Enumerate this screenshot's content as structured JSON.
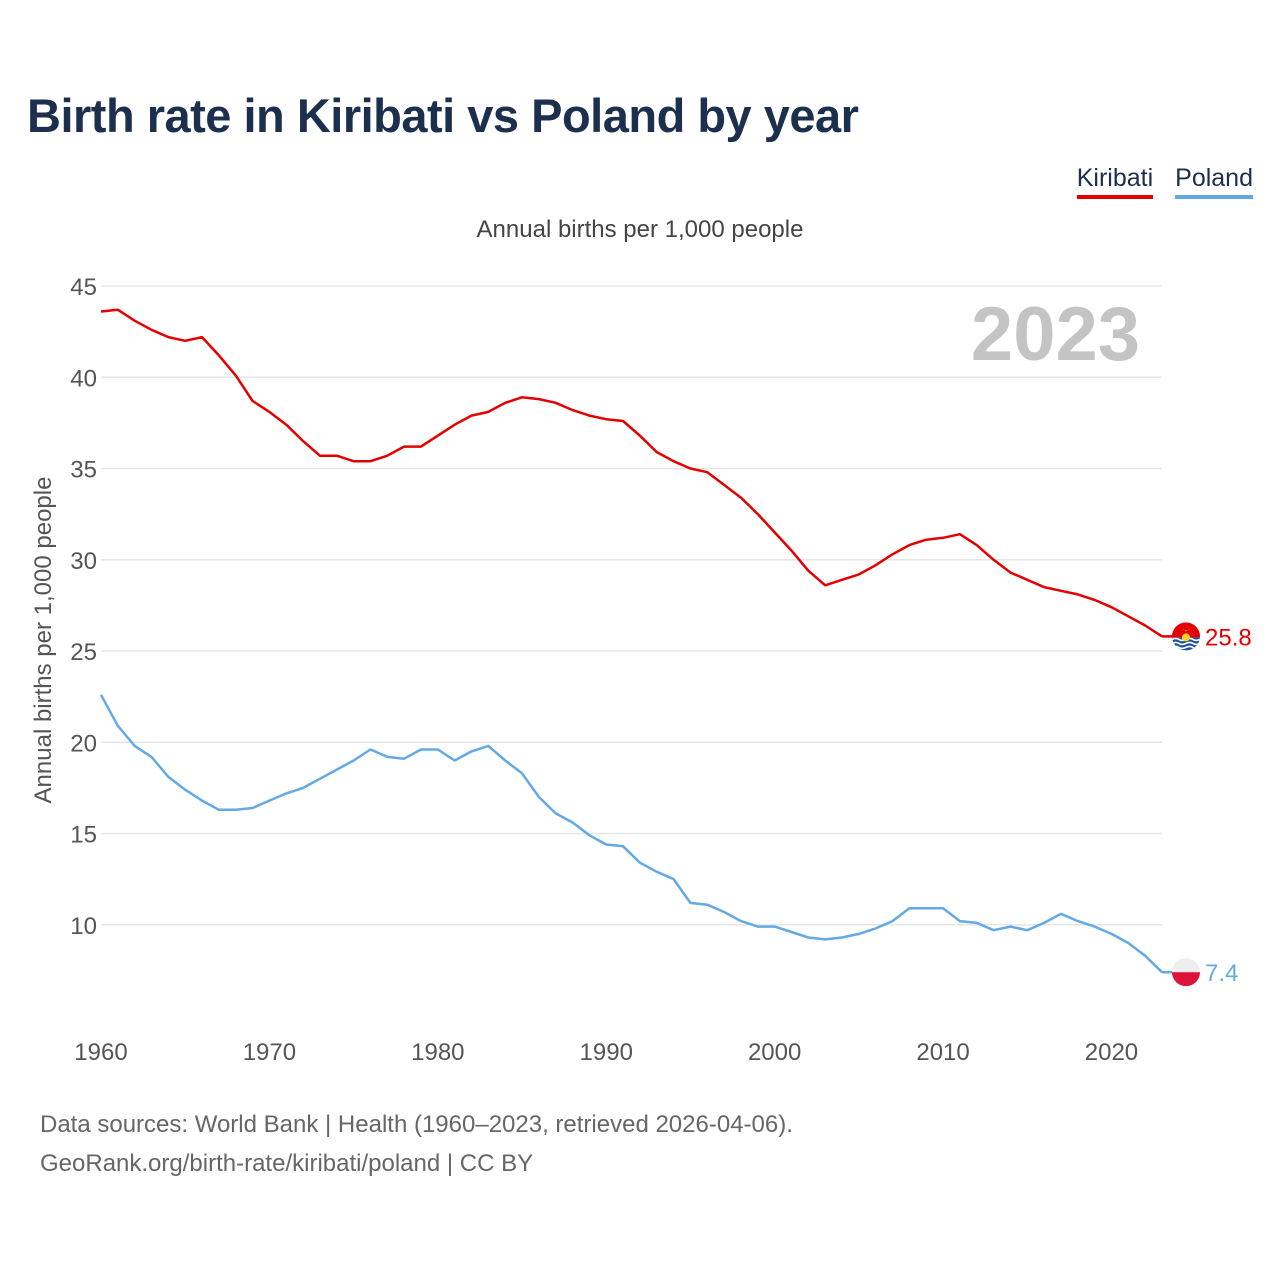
{
  "title": "Birth rate in Kiribati vs Poland by year",
  "legend": {
    "kiribati": "Kiribati",
    "poland": "Poland"
  },
  "colors": {
    "kiribati": "#e50000",
    "poland": "#63a9e6",
    "year_watermark": "#c4c4c4",
    "grid": "#e6e6e6",
    "text": "#555555"
  },
  "chart_data": {
    "type": "line",
    "title": "Birth rate in Kiribati vs Poland by year",
    "subtitle": "Annual births per 1,000 people",
    "ylabel": "Annual births per 1,000 people",
    "xlabel": "",
    "ylim": [
      5,
      45
    ],
    "xlim": [
      1960,
      2023
    ],
    "yticks": [
      45,
      40,
      35,
      30,
      25,
      20,
      15,
      10
    ],
    "xticks": [
      1960,
      1970,
      1980,
      1990,
      2000,
      2010,
      2020
    ],
    "year_label": "2023",
    "grid": true,
    "legend_position": "top-right",
    "series": [
      {
        "name": "Kiribati",
        "end_label": "25.8",
        "x": [
          1960,
          1961,
          1962,
          1963,
          1964,
          1965,
          1966,
          1967,
          1968,
          1969,
          1970,
          1971,
          1972,
          1973,
          1974,
          1975,
          1976,
          1977,
          1978,
          1979,
          1980,
          1981,
          1982,
          1983,
          1984,
          1985,
          1986,
          1987,
          1988,
          1989,
          1990,
          1991,
          1992,
          1993,
          1994,
          1995,
          1996,
          1997,
          1998,
          1999,
          2000,
          2001,
          2002,
          2003,
          2004,
          2005,
          2006,
          2007,
          2008,
          2009,
          2010,
          2011,
          2012,
          2013,
          2014,
          2015,
          2016,
          2017,
          2018,
          2019,
          2020,
          2021,
          2022,
          2023
        ],
        "values": [
          43.6,
          43.7,
          43.1,
          42.6,
          42.2,
          42.0,
          42.2,
          41.2,
          40.1,
          38.7,
          38.1,
          37.4,
          36.5,
          35.7,
          35.7,
          35.4,
          35.4,
          35.7,
          36.2,
          36.2,
          36.8,
          37.4,
          37.9,
          38.1,
          38.6,
          38.9,
          38.8,
          38.6,
          38.2,
          37.9,
          37.7,
          37.6,
          36.8,
          35.9,
          35.4,
          35.0,
          34.8,
          34.1,
          33.4,
          32.5,
          31.5,
          30.5,
          29.4,
          28.6,
          28.9,
          29.2,
          29.7,
          30.3,
          30.8,
          31.1,
          31.2,
          31.4,
          30.8,
          30.0,
          29.3,
          28.9,
          28.5,
          28.3,
          28.1,
          27.8,
          27.4,
          26.9,
          26.4,
          25.8
        ]
      },
      {
        "name": "Poland",
        "end_label": "7.4",
        "x": [
          1960,
          1961,
          1962,
          1963,
          1964,
          1965,
          1966,
          1967,
          1968,
          1969,
          1970,
          1971,
          1972,
          1973,
          1974,
          1975,
          1976,
          1977,
          1978,
          1979,
          1980,
          1981,
          1982,
          1983,
          1984,
          1985,
          1986,
          1987,
          1988,
          1989,
          1990,
          1991,
          1992,
          1993,
          1994,
          1995,
          1996,
          1997,
          1998,
          1999,
          2000,
          2001,
          2002,
          2003,
          2004,
          2005,
          2006,
          2007,
          2008,
          2009,
          2010,
          2011,
          2012,
          2013,
          2014,
          2015,
          2016,
          2017,
          2018,
          2019,
          2020,
          2021,
          2022,
          2023
        ],
        "values": [
          22.6,
          20.9,
          19.8,
          19.2,
          18.1,
          17.4,
          16.8,
          16.3,
          16.3,
          16.4,
          16.8,
          17.2,
          17.5,
          18.0,
          18.5,
          19.0,
          19.6,
          19.2,
          19.1,
          19.6,
          19.6,
          19.0,
          19.5,
          19.8,
          19.0,
          18.3,
          17.0,
          16.1,
          15.6,
          14.9,
          14.4,
          14.3,
          13.4,
          12.9,
          12.5,
          11.2,
          11.1,
          10.7,
          10.2,
          9.9,
          9.9,
          9.6,
          9.3,
          9.2,
          9.3,
          9.5,
          9.8,
          10.2,
          10.9,
          10.9,
          10.9,
          10.2,
          10.1,
          9.7,
          9.9,
          9.7,
          10.1,
          10.6,
          10.2,
          9.9,
          9.5,
          9.0,
          8.3,
          7.4
        ]
      }
    ]
  },
  "footer": {
    "line1": "Data sources: World Bank | Health (1960–2023, retrieved 2026-04-06).",
    "line2": "GeoRank.org/birth-rate/kiribati/poland | CC BY"
  }
}
